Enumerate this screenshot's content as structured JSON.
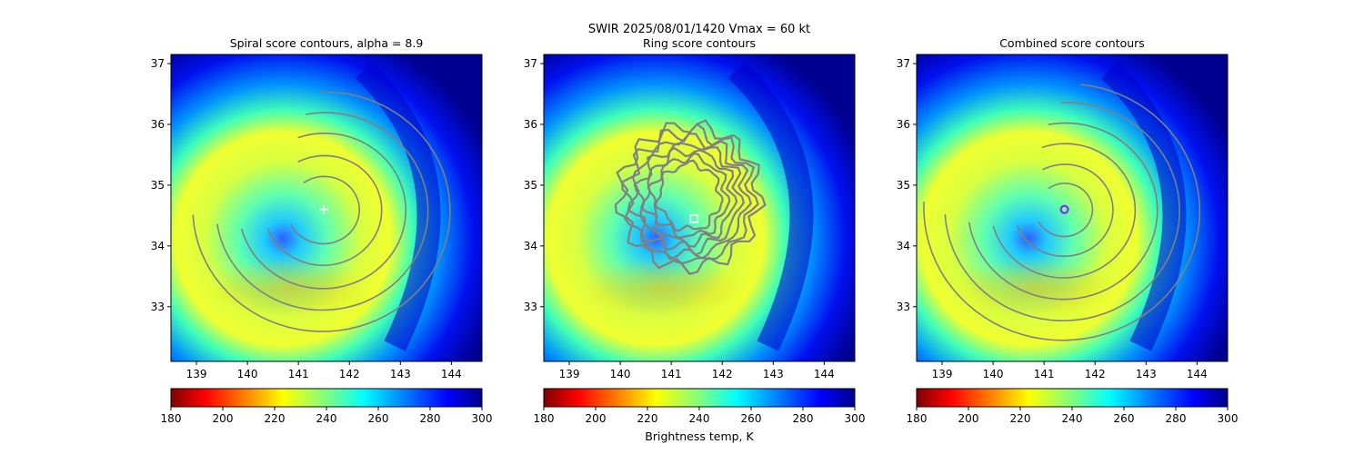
{
  "figure": {
    "suptitle": "SWIR  2025/08/01/1420    Vmax = 60 kt",
    "colorbar_label": "Brightness temp, K",
    "colormap": "jet_r",
    "colors": {
      "contour": "#808080",
      "center_marker": "#ffffff",
      "best_center_marker": "#8a2be2",
      "colormap_stops": [
        "#800000",
        "#ff0000",
        "#ff8c00",
        "#ffff00",
        "#7fff7f",
        "#00ffff",
        "#0080ff",
        "#0000ff",
        "#00008b"
      ]
    }
  },
  "chart_data": [
    {
      "type": "heatmap",
      "title": "Spiral score contours, alpha =  8.9",
      "xlabel": "",
      "ylabel": "",
      "xlim": [
        138.5,
        144.6
      ],
      "ylim": [
        32.1,
        37.15
      ],
      "xticks": [
        "139",
        "140",
        "141",
        "142",
        "143",
        "144"
      ],
      "yticks": [
        "33",
        "34",
        "35",
        "36",
        "37"
      ],
      "colorbar": {
        "range": [
          180,
          300
        ],
        "ticks": [
          "180",
          "200",
          "220",
          "240",
          "260",
          "280",
          "300"
        ]
      },
      "center_marker": {
        "lon": 141.5,
        "lat": 34.6,
        "symbol": "+"
      },
      "overlay": "spiral"
    },
    {
      "type": "heatmap",
      "title": "Ring score contours",
      "xlabel": "",
      "ylabel": "",
      "xlim": [
        138.5,
        144.6
      ],
      "ylim": [
        32.1,
        37.15
      ],
      "xticks": [
        "139",
        "140",
        "141",
        "142",
        "143",
        "144"
      ],
      "yticks": [
        "33",
        "34",
        "35",
        "36",
        "37"
      ],
      "colorbar": {
        "range": [
          180,
          300
        ],
        "ticks": [
          "180",
          "200",
          "220",
          "240",
          "260",
          "280",
          "300"
        ]
      },
      "center_marker": {
        "lon": 141.45,
        "lat": 34.45,
        "symbol": "square"
      },
      "overlay": "ring"
    },
    {
      "type": "heatmap",
      "title": "Combined score contours",
      "xlabel": "",
      "ylabel": "",
      "xlim": [
        138.5,
        144.6
      ],
      "ylim": [
        32.1,
        37.15
      ],
      "xticks": [
        "139",
        "140",
        "141",
        "142",
        "143",
        "144"
      ],
      "yticks": [
        "33",
        "34",
        "35",
        "36",
        "37"
      ],
      "colorbar": {
        "range": [
          180,
          300
        ],
        "ticks": [
          "180",
          "200",
          "220",
          "240",
          "260",
          "280",
          "300"
        ]
      },
      "center_marker": {
        "lon": 141.4,
        "lat": 34.6,
        "symbol": "circle"
      },
      "overlay": "combined"
    }
  ]
}
